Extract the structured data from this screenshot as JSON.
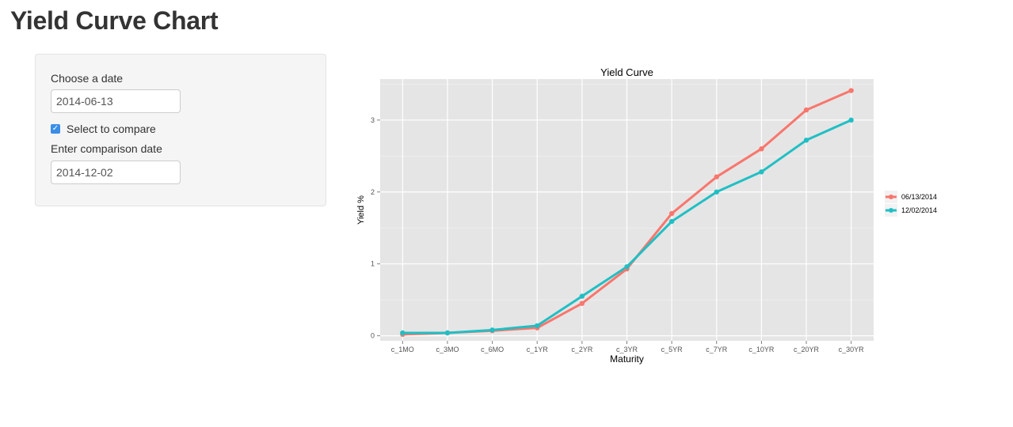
{
  "page": {
    "title": "Yield Curve Chart"
  },
  "sidebar": {
    "date_label": "Choose a date",
    "date_value": "2014-06-13",
    "compare_checked": true,
    "compare_label": "Select to compare",
    "comparison_label": "Enter comparison date",
    "comparison_value": "2014-12-02"
  },
  "colors": {
    "series1": "#F8766D",
    "series2": "#20BFC4",
    "panel": "#E5E5E5",
    "grid": "#FFFFFF"
  },
  "chart_data": {
    "type": "line",
    "title": "Yield Curve",
    "xlabel": "Maturity",
    "ylabel": "Yield %",
    "categories": [
      "c_1MO",
      "c_3MO",
      "c_6MO",
      "c_1YR",
      "c_2YR",
      "c_3YR",
      "c_5YR",
      "c_7YR",
      "c_10YR",
      "c_20YR",
      "c_30YR"
    ],
    "y_ticks": [
      0,
      1,
      2,
      3
    ],
    "ylim": [
      -0.07,
      3.57
    ],
    "grid": true,
    "legend_position": "right",
    "series": [
      {
        "name": "06/13/2014",
        "values": [
          0.02,
          0.04,
          0.07,
          0.11,
          0.45,
          0.93,
          1.7,
          2.21,
          2.6,
          3.14,
          3.41
        ]
      },
      {
        "name": "12/02/2014",
        "values": [
          0.04,
          0.04,
          0.08,
          0.14,
          0.55,
          0.96,
          1.59,
          2.0,
          2.28,
          2.72,
          3.0
        ]
      }
    ]
  }
}
